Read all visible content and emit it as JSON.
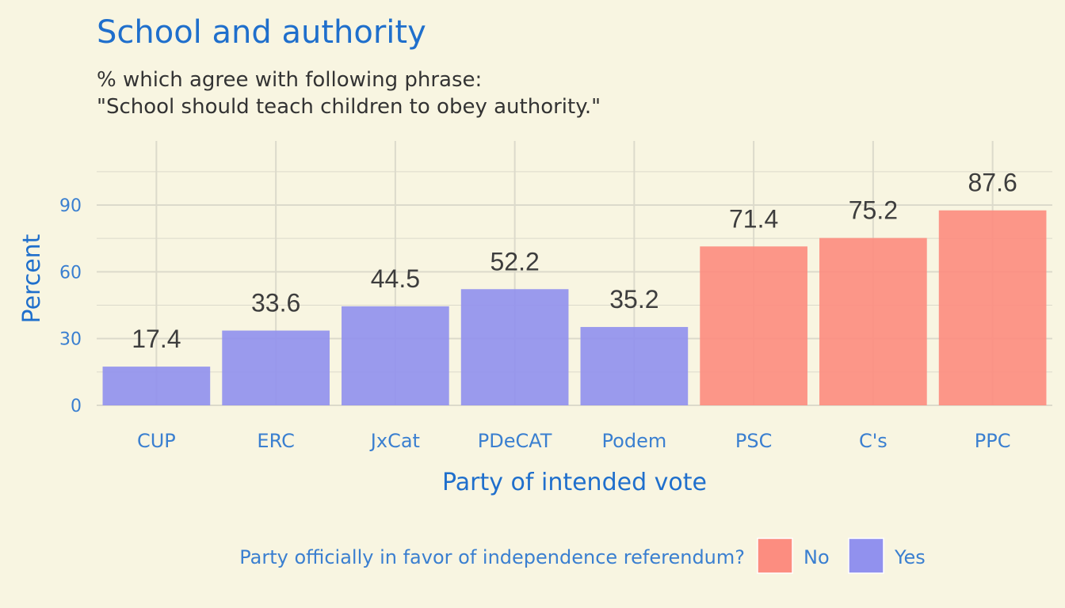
{
  "chart_data": {
    "type": "bar",
    "title": "School and authority",
    "subtitle": [
      "% which agree with following phrase:",
      "\"School should teach children to obey authority.\""
    ],
    "xlabel": "Party of intended vote",
    "ylabel": "Percent",
    "ylim": [
      0,
      120
    ],
    "yticks": [
      0,
      30,
      60,
      90
    ],
    "grid": true,
    "categories": [
      "CUP",
      "ERC",
      "JxCat",
      "PDeCAT",
      "Podem",
      "PSC",
      "C's",
      "PPC"
    ],
    "values": [
      17.4,
      33.6,
      44.5,
      52.2,
      35.2,
      71.4,
      75.2,
      87.6
    ],
    "value_labels": [
      "17.4",
      "33.6",
      "44.5",
      "52.2",
      "35.2",
      "71.4",
      "75.2",
      "87.6"
    ],
    "groups": [
      "Yes",
      "Yes",
      "Yes",
      "Yes",
      "Yes",
      "No",
      "No",
      "No"
    ],
    "legend": {
      "title": "Party officially in favor of independence referendum?",
      "placement": "bottom",
      "entries": [
        {
          "name": "No",
          "color": "#fc8d80"
        },
        {
          "name": "Yes",
          "color": "#9191ee"
        }
      ]
    }
  }
}
